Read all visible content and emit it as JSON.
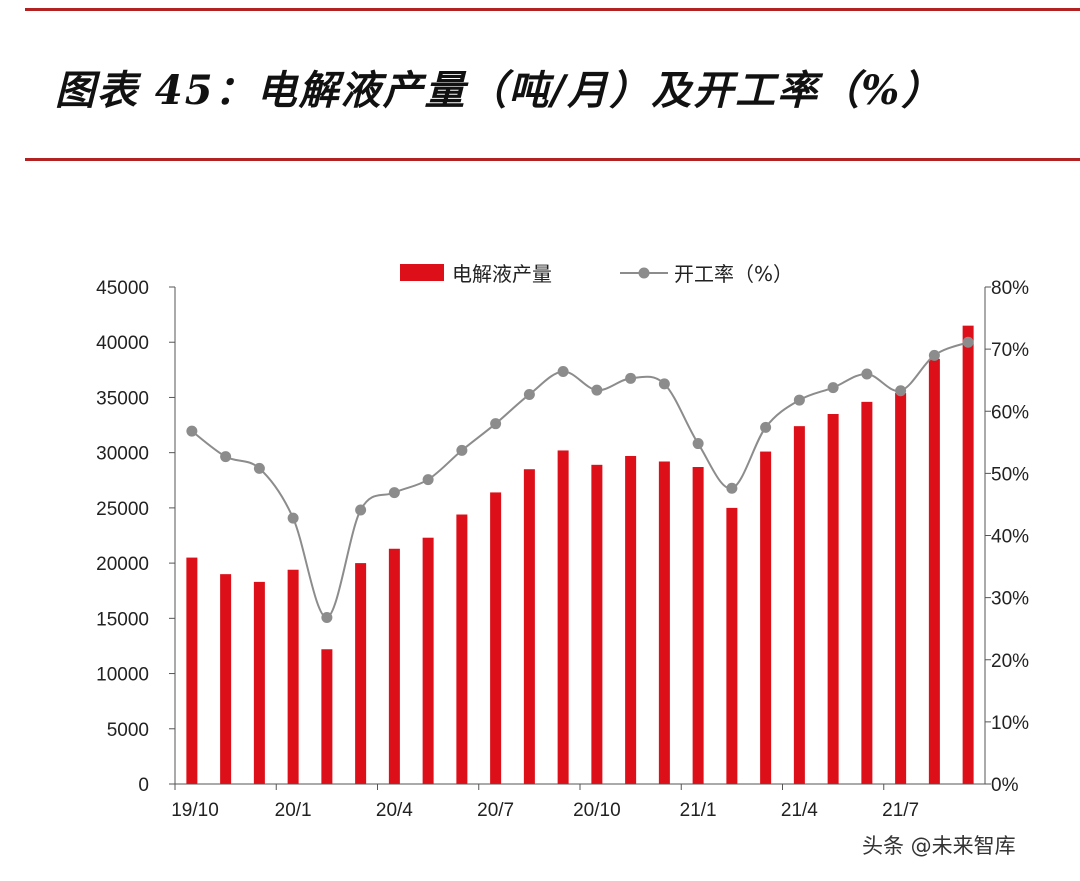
{
  "header": {
    "title": "图表 45：电解液产量（吨/月）及开工率（%）"
  },
  "watermark": {
    "text": "头条 @未来智库"
  },
  "chart_data": {
    "type": "bar",
    "legend_position": "top",
    "grid": false,
    "x_tick_labels": [
      "19/10",
      "20/1",
      "20/4",
      "20/7",
      "20/10",
      "21/1",
      "21/4",
      "21/7"
    ],
    "x_tick_indices": [
      0,
      3,
      6,
      9,
      12,
      15,
      18,
      21
    ],
    "left_axis": {
      "ylim": [
        0,
        45000
      ],
      "ticks": [
        0,
        5000,
        10000,
        15000,
        20000,
        25000,
        30000,
        35000,
        40000,
        45000
      ]
    },
    "right_axis": {
      "ylim": [
        0,
        80
      ],
      "ticks": [
        0,
        10,
        20,
        30,
        40,
        50,
        60,
        70,
        80
      ],
      "unit": "%"
    },
    "series": [
      {
        "name": "电解液产量",
        "type": "bar",
        "axis": "left",
        "color": "#dd0f18",
        "values": [
          20500,
          19000,
          18300,
          19400,
          12200,
          20000,
          21300,
          22300,
          24400,
          26400,
          28500,
          30200,
          28900,
          29700,
          29200,
          28700,
          25000,
          30100,
          32400,
          33500,
          34600,
          35400,
          38500,
          41500
        ]
      },
      {
        "name": "开工率（%）",
        "type": "line",
        "axis": "right",
        "color": "#8c8c8c",
        "values": [
          56.8,
          52.7,
          50.8,
          42.8,
          26.8,
          44.1,
          46.9,
          49.0,
          53.7,
          58.0,
          62.7,
          66.4,
          63.4,
          65.3,
          64.4,
          54.8,
          47.6,
          57.4,
          61.8,
          63.8,
          66.0,
          63.3,
          69.0,
          71.1
        ]
      }
    ]
  }
}
